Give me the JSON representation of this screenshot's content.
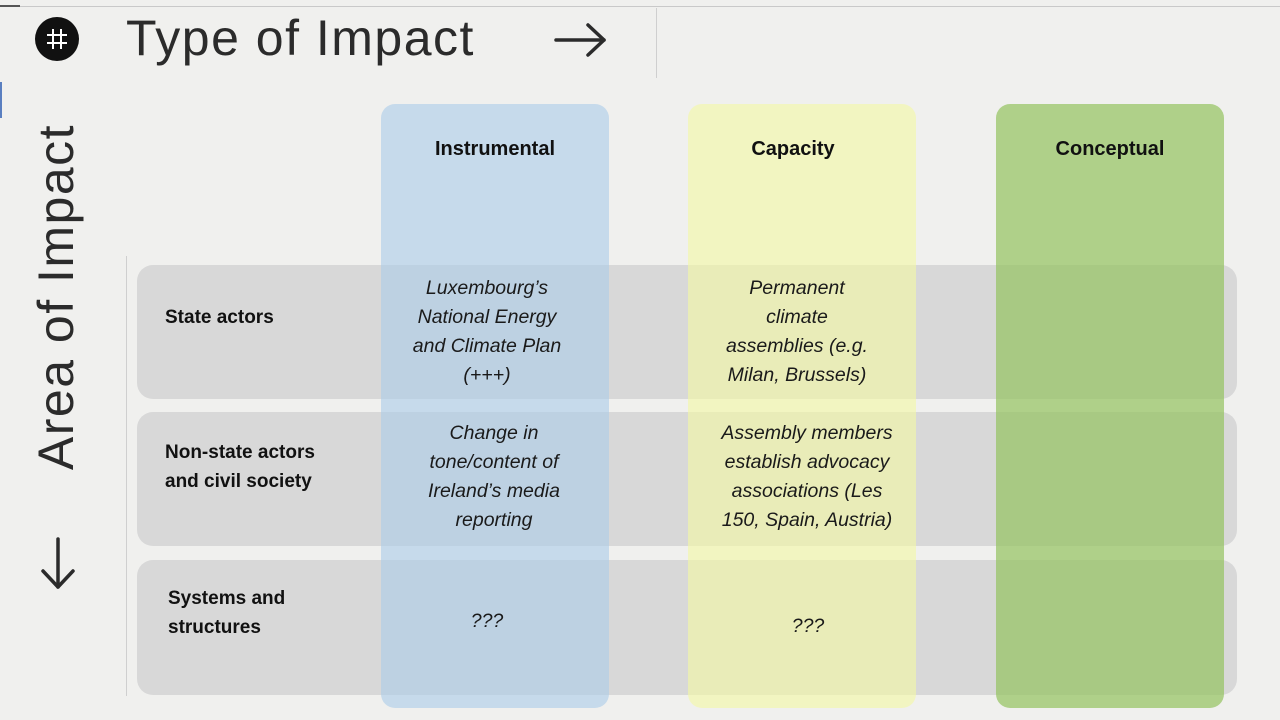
{
  "header": {
    "title": "Type of Impact",
    "icon": "grid-icon"
  },
  "side": {
    "title": "Area of Impact"
  },
  "colors": {
    "instrumental": "#adcde8",
    "capacity": "#f4f8a4",
    "conceptual": "#96c462",
    "row": "#d8d8d8"
  },
  "columns": [
    "Instrumental",
    "Capacity",
    "Conceptual"
  ],
  "rows": [
    {
      "label": [
        "State actors"
      ],
      "instrumental": [
        "Luxembourg’s",
        "National Energy",
        "and Climate Plan",
        "(+++)"
      ],
      "capacity": [
        "Permanent",
        "climate",
        "assemblies (e.g.",
        "Milan, Brussels)"
      ]
    },
    {
      "label": [
        "Non-state actors",
        "and civil society"
      ],
      "instrumental": [
        "Change in",
        "tone/content of",
        "Ireland’s media",
        "reporting"
      ],
      "capacity": [
        "Assembly members",
        "establish advocacy",
        "associations (Les",
        "150, Spain, Austria)"
      ]
    },
    {
      "label": [
        "Systems and",
        "structures"
      ],
      "instrumental": [
        "???"
      ],
      "capacity": [
        "???"
      ]
    }
  ]
}
